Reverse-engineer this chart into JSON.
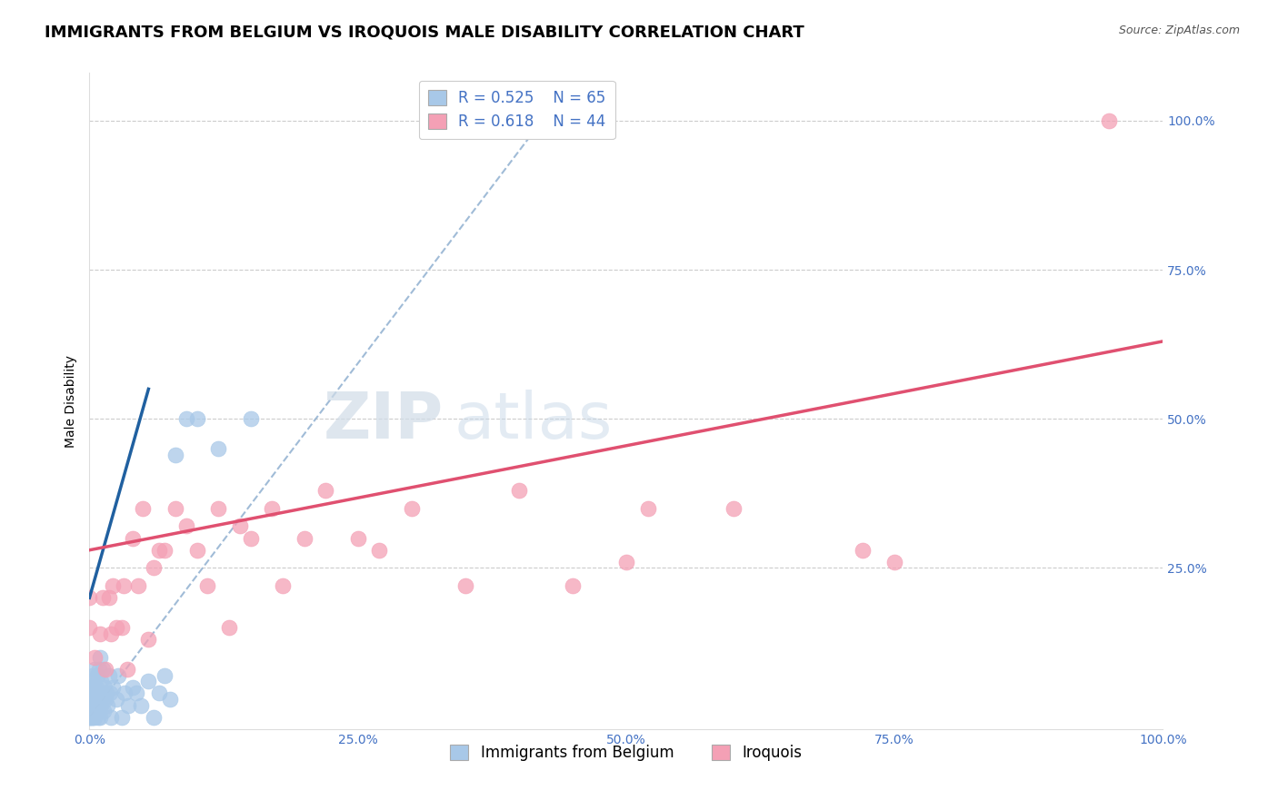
{
  "title": "IMMIGRANTS FROM BELGIUM VS IROQUOIS MALE DISABILITY CORRELATION CHART",
  "source": "Source: ZipAtlas.com",
  "xlim": [
    0.0,
    1.0
  ],
  "ylim": [
    0.0,
    1.05
  ],
  "blue_R": 0.525,
  "blue_N": 65,
  "pink_R": 0.618,
  "pink_N": 44,
  "blue_color": "#a8c8e8",
  "pink_color": "#f4a0b5",
  "blue_line_color": "#2060a0",
  "pink_line_color": "#e05070",
  "ref_line_color": "#90b0d0",
  "legend_label_blue": "Immigrants from Belgium",
  "legend_label_pink": "Iroquois",
  "blue_points_x": [
    0.0,
    0.0,
    0.0,
    0.0,
    0.0,
    0.0,
    0.0,
    0.0,
    0.0,
    0.0,
    0.001,
    0.001,
    0.002,
    0.002,
    0.002,
    0.003,
    0.003,
    0.003,
    0.004,
    0.004,
    0.005,
    0.005,
    0.005,
    0.006,
    0.006,
    0.007,
    0.007,
    0.008,
    0.008,
    0.009,
    0.009,
    0.01,
    0.01,
    0.01,
    0.011,
    0.011,
    0.012,
    0.012,
    0.013,
    0.014,
    0.015,
    0.016,
    0.017,
    0.018,
    0.019,
    0.02,
    0.022,
    0.025,
    0.027,
    0.03,
    0.033,
    0.036,
    0.04,
    0.044,
    0.048,
    0.055,
    0.06,
    0.065,
    0.07,
    0.075,
    0.08,
    0.09,
    0.1,
    0.12,
    0.15
  ],
  "blue_points_y": [
    0.0,
    0.0,
    0.01,
    0.01,
    0.02,
    0.02,
    0.03,
    0.03,
    0.04,
    0.05,
    0.0,
    0.03,
    0.0,
    0.02,
    0.05,
    0.0,
    0.03,
    0.07,
    0.02,
    0.06,
    0.0,
    0.03,
    0.08,
    0.01,
    0.05,
    0.02,
    0.07,
    0.0,
    0.04,
    0.02,
    0.08,
    0.0,
    0.04,
    0.1,
    0.02,
    0.06,
    0.03,
    0.08,
    0.01,
    0.05,
    0.03,
    0.04,
    0.02,
    0.07,
    0.04,
    0.0,
    0.05,
    0.03,
    0.07,
    0.0,
    0.04,
    0.02,
    0.05,
    0.04,
    0.02,
    0.06,
    0.0,
    0.04,
    0.07,
    0.03,
    0.44,
    0.5,
    0.5,
    0.45,
    0.5
  ],
  "pink_points_x": [
    0.0,
    0.0,
    0.005,
    0.01,
    0.012,
    0.015,
    0.018,
    0.02,
    0.022,
    0.025,
    0.03,
    0.032,
    0.035,
    0.04,
    0.045,
    0.05,
    0.055,
    0.06,
    0.065,
    0.07,
    0.08,
    0.09,
    0.1,
    0.11,
    0.12,
    0.13,
    0.14,
    0.15,
    0.17,
    0.18,
    0.2,
    0.22,
    0.25,
    0.27,
    0.3,
    0.35,
    0.4,
    0.45,
    0.5,
    0.52,
    0.6,
    0.72,
    0.75,
    0.95
  ],
  "pink_points_y": [
    0.15,
    0.2,
    0.1,
    0.14,
    0.2,
    0.08,
    0.2,
    0.14,
    0.22,
    0.15,
    0.15,
    0.22,
    0.08,
    0.3,
    0.22,
    0.35,
    0.13,
    0.25,
    0.28,
    0.28,
    0.35,
    0.32,
    0.28,
    0.22,
    0.35,
    0.15,
    0.32,
    0.3,
    0.35,
    0.22,
    0.3,
    0.38,
    0.3,
    0.28,
    0.35,
    0.22,
    0.38,
    0.22,
    0.26,
    0.35,
    0.35,
    0.28,
    0.26,
    1.0
  ],
  "blue_line_x": [
    0.0,
    0.055
  ],
  "blue_line_y": [
    0.2,
    0.55
  ],
  "pink_line_x": [
    0.0,
    1.0
  ],
  "pink_line_y": [
    0.28,
    0.63
  ],
  "ref_line_x": [
    0.0,
    0.43
  ],
  "ref_line_y": [
    0.0,
    1.02
  ],
  "watermark_zip": "ZIP",
  "watermark_atlas": "atlas",
  "title_fontsize": 13,
  "axis_label_fontsize": 10,
  "legend_fontsize": 12,
  "tick_fontsize": 10
}
